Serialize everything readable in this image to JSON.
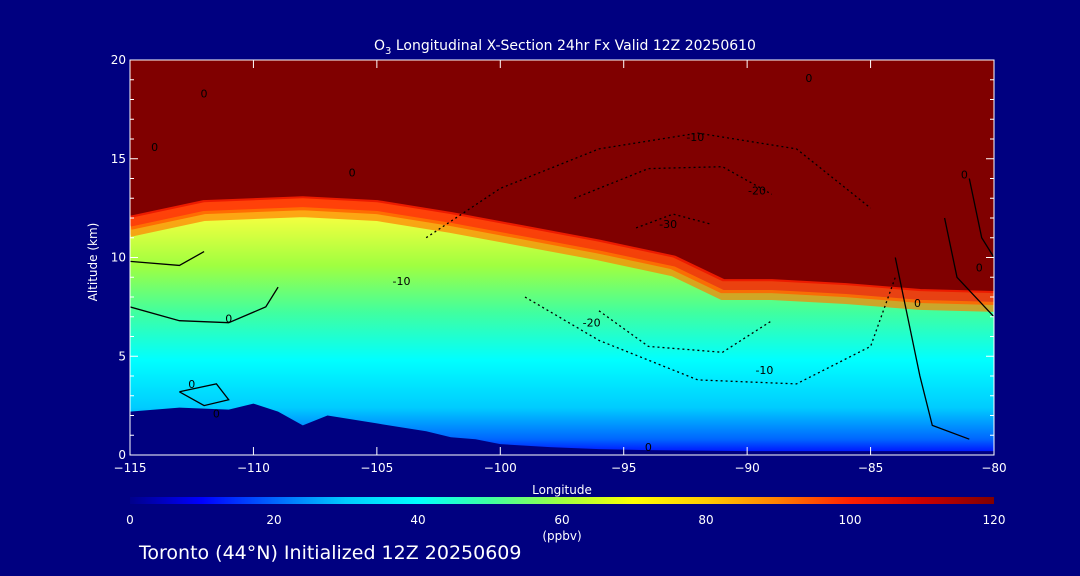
{
  "chart_data": {
    "type": "heatmap",
    "title": {
      "species_base": "O",
      "species_sub": "3",
      "rest": " Longitudinal X-Section 24hr  Fx Valid 12Z 20250610"
    },
    "xlabel": "Longitude",
    "ylabel": "Altitude (km)",
    "xlim": [
      -115,
      -80
    ],
    "ylim": [
      0,
      20
    ],
    "x_ticks": [
      -115,
      -110,
      -105,
      -100,
      -95,
      -90,
      -85,
      -80
    ],
    "x_tick_labels": [
      "−115",
      "−110",
      "−105",
      "−100",
      "−95",
      "−90",
      "−85",
      "−80"
    ],
    "y_ticks": [
      0,
      5,
      10,
      15,
      20
    ],
    "y_tick_labels": [
      "0",
      "5",
      "10",
      "15",
      "20"
    ],
    "colorbar": {
      "unit": "(ppbv)",
      "ticks": [
        0,
        20,
        40,
        60,
        80,
        100,
        120
      ],
      "tick_labels": [
        "0",
        "20",
        "40",
        "60",
        "80",
        "100",
        "120"
      ],
      "range": [
        0,
        120
      ],
      "colors": [
        "#00008b",
        "#0000ff",
        "#0066ff",
        "#00ccff",
        "#00ffff",
        "#40ffa0",
        "#a0ff40",
        "#ffff00",
        "#ffcc00",
        "#ff8000",
        "#ff2000",
        "#cc0000",
        "#800000"
      ]
    },
    "field": {
      "tropopause_height_km": [
        [
          -115,
          12.0
        ],
        [
          -112,
          12.8
        ],
        [
          -108,
          13.0
        ],
        [
          -105,
          12.8
        ],
        [
          -102,
          12.2
        ],
        [
          -99,
          11.5
        ],
        [
          -96,
          10.8
        ],
        [
          -93,
          10.0
        ],
        [
          -91,
          8.8
        ],
        [
          -89,
          8.8
        ],
        [
          -86,
          8.6
        ],
        [
          -83,
          8.3
        ],
        [
          -80,
          8.2
        ]
      ],
      "terrain_height_km": [
        [
          -115,
          2.2
        ],
        [
          -113,
          2.4
        ],
        [
          -111,
          2.3
        ],
        [
          -110,
          2.6
        ],
        [
          -109,
          2.2
        ],
        [
          -108,
          1.5
        ],
        [
          -107,
          2.0
        ],
        [
          -105,
          1.6
        ],
        [
          -104,
          1.4
        ],
        [
          -103,
          1.2
        ],
        [
          -102,
          0.9
        ],
        [
          -101,
          0.8
        ],
        [
          -100,
          0.55
        ],
        [
          -98,
          0.4
        ],
        [
          -96,
          0.3
        ],
        [
          -94,
          0.25
        ],
        [
          -90,
          0.2
        ],
        [
          -86,
          0.2
        ],
        [
          -82,
          0.2
        ],
        [
          -80,
          0.2
        ]
      ],
      "anomaly_contours": [
        {
          "level": "-10",
          "points": [
            [
              -103,
              11
            ],
            [
              -100,
              13.5
            ],
            [
              -96,
              15.5
            ],
            [
              -92,
              16.3
            ],
            [
              -88,
              15.5
            ],
            [
              -85,
              12.5
            ]
          ]
        },
        {
          "level": "-20",
          "points": [
            [
              -97,
              13
            ],
            [
              -94,
              14.5
            ],
            [
              -91,
              14.6
            ],
            [
              -89,
              13.2
            ]
          ]
        },
        {
          "level": "-30",
          "points": [
            [
              -94.5,
              11.5
            ],
            [
              -93,
              12.2
            ],
            [
              -91.5,
              11.7
            ]
          ]
        },
        {
          "level": "-10",
          "points": [
            [
              -99,
              8
            ],
            [
              -96,
              5.8
            ],
            [
              -92,
              3.8
            ],
            [
              -88,
              3.6
            ],
            [
              -85,
              5.5
            ],
            [
              -84,
              9
            ]
          ]
        },
        {
          "level": "-20",
          "points": [
            [
              -96,
              7.3
            ],
            [
              -94,
              5.5
            ],
            [
              -91,
              5.2
            ],
            [
              -89,
              6.8
            ]
          ]
        }
      ],
      "solid_contours": [
        {
          "level": "0",
          "points": [
            [
              -115,
              7.5
            ],
            [
              -113,
              6.8
            ],
            [
              -111,
              6.7
            ],
            [
              -109.5,
              7.5
            ],
            [
              -109,
              8.5
            ]
          ]
        },
        {
          "level": "0",
          "points": [
            [
              -115,
              9.8
            ],
            [
              -113,
              9.6
            ],
            [
              -112,
              10.3
            ]
          ]
        },
        {
          "level": "0",
          "points": [
            [
              -84,
              10
            ],
            [
              -83.5,
              7
            ],
            [
              -83,
              4
            ],
            [
              -82.5,
              1.5
            ],
            [
              -81,
              0.8
            ]
          ]
        },
        {
          "level": "0",
          "points": [
            [
              -82,
              12
            ],
            [
              -81.5,
              9
            ],
            [
              -80,
              7
            ]
          ]
        },
        {
          "level": "0",
          "points": [
            [
              -81,
              14
            ],
            [
              -80.5,
              11
            ],
            [
              -80,
              10
            ]
          ]
        },
        {
          "level": "0",
          "points": [
            [
              -113,
              3.2
            ],
            [
              -112,
              2.5
            ],
            [
              -111,
              2.8
            ],
            [
              -111.5,
              3.6
            ],
            [
              -113,
              3.2
            ]
          ]
        }
      ],
      "contour_labels": [
        {
          "text": "0",
          "lon": -112,
          "lat": 18.3
        },
        {
          "text": "0",
          "lon": -114,
          "lat": 15.6
        },
        {
          "text": "0",
          "lon": -106,
          "lat": 14.3
        },
        {
          "text": "0",
          "lon": -111,
          "lat": 6.9
        },
        {
          "text": "0",
          "lon": -112.5,
          "lat": 3.6
        },
        {
          "text": "0",
          "lon": -111.5,
          "lat": 2.1
        },
        {
          "text": "0",
          "lon": -94,
          "lat": 0.4
        },
        {
          "text": "0",
          "lon": -87.5,
          "lat": 19.1
        },
        {
          "text": "0",
          "lon": -81.2,
          "lat": 14.2
        },
        {
          "text": "0",
          "lon": -80.6,
          "lat": 9.5
        },
        {
          "text": "0",
          "lon": -83.1,
          "lat": 7.7
        },
        {
          "text": "-10",
          "lon": -92.1,
          "lat": 16.1
        },
        {
          "text": "-20",
          "lon": -89.6,
          "lat": 13.4
        },
        {
          "text": "-30",
          "lon": -93.2,
          "lat": 11.7
        },
        {
          "text": "-10",
          "lon": -104,
          "lat": 8.8
        },
        {
          "text": "-20",
          "lon": -96.3,
          "lat": 6.7
        },
        {
          "text": "-10",
          "lon": -89.3,
          "lat": 4.3
        }
      ]
    }
  },
  "footer": {
    "text": "Toronto (44°N) Initialized 12Z 20250609"
  }
}
